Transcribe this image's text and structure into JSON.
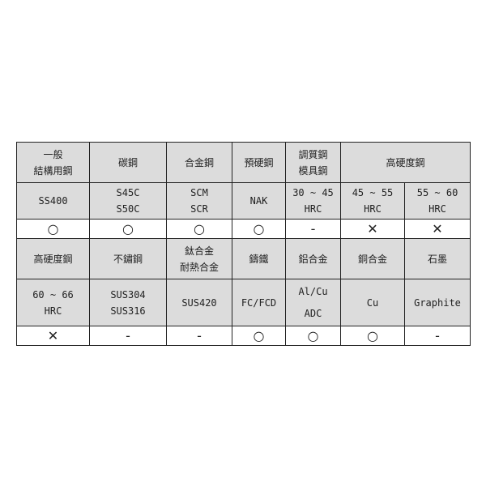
{
  "table": {
    "rows": [
      {
        "type": "header",
        "cells": [
          {
            "text": "一般\n結構用鋼"
          },
          {
            "text": "碳鋼"
          },
          {
            "text": "合金鋼"
          },
          {
            "text": "預硬鋼"
          },
          {
            "text": "調質鋼\n模具鋼"
          },
          {
            "text": "高硬度鋼",
            "colspan": 2
          }
        ]
      },
      {
        "type": "grade",
        "cells": [
          {
            "text": "SS400"
          },
          {
            "text": "S45C\nS50C"
          },
          {
            "text": "SCM\nSCR"
          },
          {
            "text": "NAK"
          },
          {
            "text": "30 ~ 45\nHRC"
          },
          {
            "text": "45 ~ 55\nHRC"
          },
          {
            "text": "55 ~ 60\nHRC"
          }
        ]
      },
      {
        "type": "symbol",
        "cells": [
          {
            "text": "○"
          },
          {
            "text": "○"
          },
          {
            "text": "○"
          },
          {
            "text": "○"
          },
          {
            "text": "-"
          },
          {
            "text": "✕"
          },
          {
            "text": "✕"
          }
        ]
      },
      {
        "type": "header",
        "cells": [
          {
            "text": "高硬度鋼"
          },
          {
            "text": "不鏽鋼"
          },
          {
            "text": "鈦合金\n耐熱合金"
          },
          {
            "text": "鑄鐵"
          },
          {
            "text": "鋁合金"
          },
          {
            "text": "銅合金"
          },
          {
            "text": "石墨"
          }
        ]
      },
      {
        "type": "grade",
        "cells": [
          {
            "text": "60 ~ 66\nHRC"
          },
          {
            "text": "SUS304\nSUS316"
          },
          {
            "text": "SUS420"
          },
          {
            "text": "FC/FCD"
          },
          {
            "text": "Al/Cu\nADC"
          },
          {
            "text": "Cu"
          },
          {
            "text": "Graphite"
          }
        ]
      },
      {
        "type": "symbol",
        "cells": [
          {
            "text": "✕"
          },
          {
            "text": "-"
          },
          {
            "text": "-"
          },
          {
            "text": "○"
          },
          {
            "text": "○"
          },
          {
            "text": "○"
          },
          {
            "text": "-"
          }
        ]
      }
    ]
  },
  "colors": {
    "header_bg": "#dcdcdc",
    "border": "#222222"
  }
}
